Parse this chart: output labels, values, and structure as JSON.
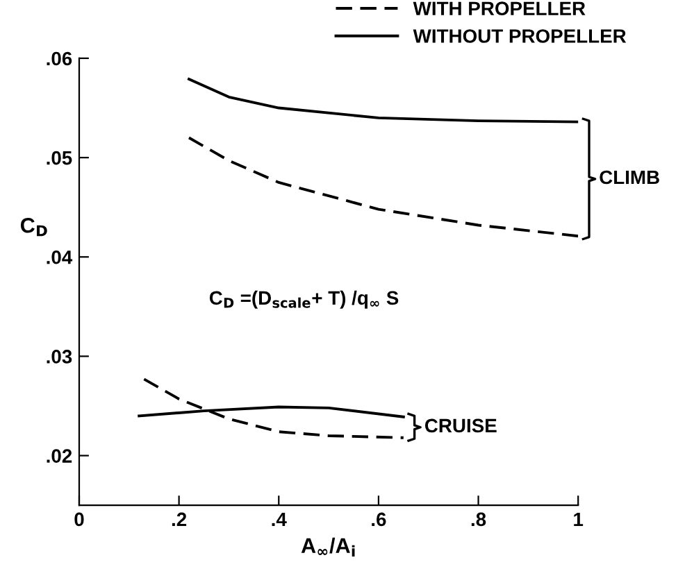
{
  "chart_data": {
    "type": "line",
    "xlabel": "A$_{∞}$/A$_{i}$",
    "ylabel": "C$_{D}$",
    "xlim": [
      0,
      1
    ],
    "ylim": [
      0.015,
      0.06
    ],
    "xticks": [
      0,
      {
        "value": 0.2,
        "label": ".2"
      },
      {
        "value": 0.4,
        "label": ".4"
      },
      {
        "value": 0.6,
        "label": ".6"
      },
      {
        "value": 0.8,
        "label": ".8"
      },
      1
    ],
    "yticks": [
      {
        "value": 0.02,
        "label": ".02"
      },
      {
        "value": 0.03,
        "label": ".03"
      },
      {
        "value": 0.04,
        "label": ".04"
      },
      {
        "value": 0.05,
        "label": ".05"
      },
      {
        "value": 0.06,
        "label": ".06"
      }
    ],
    "grid": false,
    "legend": "top right",
    "marker": "none",
    "series": [
      {
        "name": "WITH PROPELLER",
        "color": "#000000",
        "line_style": "dashed",
        "x": [
          0.22,
          0.3,
          0.4,
          0.6,
          0.8,
          1.0
        ],
        "values": [
          0.052,
          0.0497,
          0.0475,
          0.0448,
          0.0432,
          0.0421
        ]
      },
      {
        "name": "WITHOUT PROPELLER",
        "color": "#000000",
        "line_style": "solid",
        "x": [
          0.22,
          0.3,
          0.4,
          0.6,
          0.8,
          1.0
        ],
        "values": [
          0.0579,
          0.0561,
          0.055,
          0.054,
          0.0537,
          0.0536
        ]
      },
      {
        "color": "#000000",
        "line_style": "dashed",
        "x": [
          0.13,
          0.2,
          0.3,
          0.4,
          0.5,
          0.65
        ],
        "values": [
          0.0277,
          0.0257,
          0.0237,
          0.0224,
          0.022,
          0.0218
        ]
      },
      {
        "color": "#000000",
        "line_style": "solid",
        "x": [
          0.12,
          0.25,
          0.4,
          0.5,
          0.65
        ],
        "values": [
          0.024,
          0.0245,
          0.0249,
          0.0248,
          0.0239
        ]
      }
    ],
    "annotations": [
      "CLIMB",
      "CRUISE",
      "C$_{D}$ =(D$_{scale}$+ T) /q$_{∞}$ S"
    ]
  }
}
